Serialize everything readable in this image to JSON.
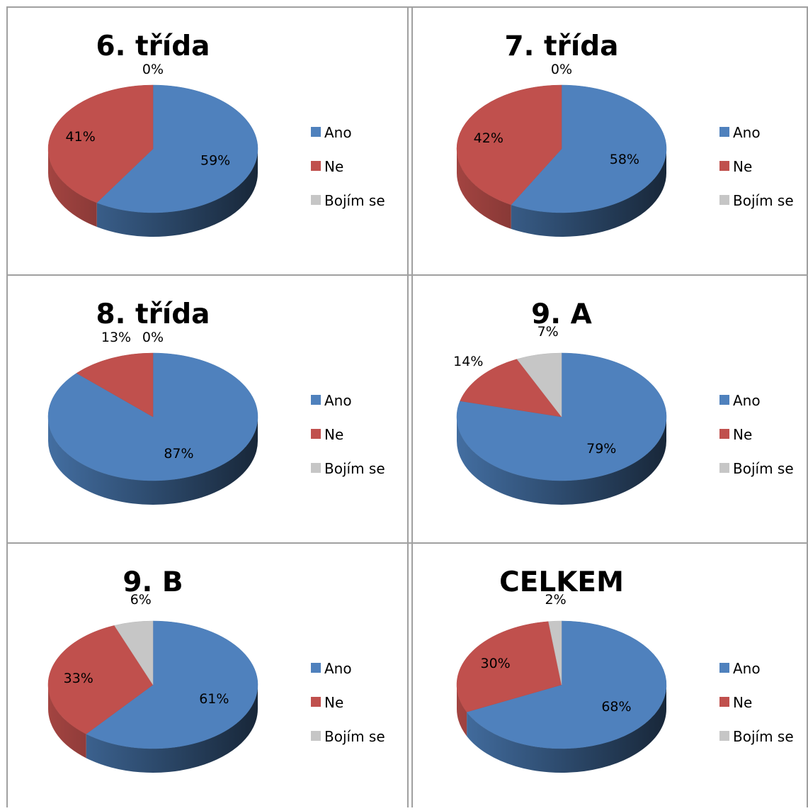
{
  "colors": {
    "Ano": "#4F81BD",
    "Ne": "#C0504D",
    "Bojím se": "#C6C6C6"
  },
  "legend": [
    "Ano",
    "Ne",
    "Bojím se"
  ],
  "chart_data": [
    {
      "type": "pie",
      "title": "6. třída",
      "categories": [
        "Ano",
        "Ne",
        "Bojím se"
      ],
      "values": [
        59,
        41,
        0
      ],
      "labels": [
        "59%",
        "41%",
        "0%"
      ],
      "legend_position": "right"
    },
    {
      "type": "pie",
      "title": "7. třída",
      "categories": [
        "Ano",
        "Ne",
        "Bojím se"
      ],
      "values": [
        58,
        42,
        0
      ],
      "labels": [
        "58%",
        "42%",
        "0%"
      ],
      "legend_position": "right"
    },
    {
      "type": "pie",
      "title": "8. třída",
      "categories": [
        "Ano",
        "Ne",
        "Bojím se"
      ],
      "values": [
        87,
        13,
        0
      ],
      "labels": [
        "87%",
        "13%",
        "0%"
      ],
      "legend_position": "right"
    },
    {
      "type": "pie",
      "title": "9. A",
      "categories": [
        "Ano",
        "Ne",
        "Bojím se"
      ],
      "values": [
        79,
        14,
        7
      ],
      "labels": [
        "79%",
        "14%",
        "7%"
      ],
      "legend_position": "right"
    },
    {
      "type": "pie",
      "title": "9. B",
      "categories": [
        "Ano",
        "Ne",
        "Bojím se"
      ],
      "values": [
        61,
        33,
        6
      ],
      "labels": [
        "61%",
        "33%",
        "6%"
      ],
      "legend_position": "right"
    },
    {
      "type": "pie",
      "title": "CELKEM",
      "categories": [
        "Ano",
        "Ne",
        "Bojím se"
      ],
      "values": [
        68,
        30,
        2
      ],
      "labels": [
        "68%",
        "30%",
        "2%"
      ],
      "legend_position": "right"
    }
  ]
}
